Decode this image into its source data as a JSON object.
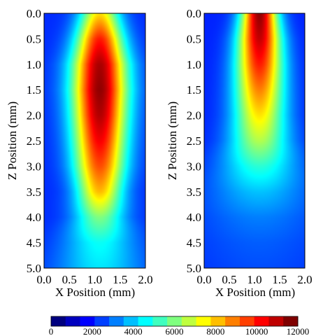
{
  "chart_data": [
    {
      "type": "heatmap",
      "title": "",
      "xlabel": "X Position (mm)",
      "ylabel": "Z Position (mm)",
      "xlim": [
        0.0,
        2.0
      ],
      "ylim": [
        0.0,
        5.0
      ],
      "y_axis_inverted": true,
      "x_ticks": [
        "0.0",
        "0.5",
        "1.0",
        "1.5",
        "2.0"
      ],
      "y_ticks": [
        "0.0",
        "0.5",
        "1.0",
        "1.5",
        "2.0",
        "2.5",
        "3.0",
        "3.5",
        "4.0",
        "4.5",
        "5.0"
      ],
      "grid": false,
      "colormap": "jet",
      "intensity_model": {
        "center_x": 1.1,
        "z_samples": [
          0.0,
          0.5,
          1.0,
          1.5,
          2.0,
          2.5,
          3.0,
          3.5,
          4.0,
          4.5,
          5.0
        ],
        "peak_values": [
          7800,
          10200,
          11500,
          11800,
          11400,
          10600,
          9600,
          8300,
          6000,
          4600,
          4200
        ],
        "half_widths_mm": [
          0.28,
          0.33,
          0.38,
          0.39,
          0.38,
          0.37,
          0.36,
          0.33,
          0.36,
          0.5,
          0.6
        ],
        "background_value": 2000
      }
    },
    {
      "type": "heatmap",
      "title": "",
      "xlabel": "X Position (mm)",
      "ylabel": "Z Position (mm)",
      "xlim": [
        0.0,
        2.0
      ],
      "ylim": [
        0.0,
        5.0
      ],
      "y_axis_inverted": true,
      "x_ticks": [
        "0.0",
        "0.5",
        "1.0",
        "1.5",
        "2.0"
      ],
      "y_ticks": [
        "0.0",
        "0.5",
        "1.0",
        "1.5",
        "2.0",
        "2.5",
        "3.0",
        "3.5",
        "4.0",
        "4.5",
        "5.0"
      ],
      "grid": false,
      "colormap": "jet",
      "intensity_model": {
        "center_x": 1.1,
        "z_samples": [
          0.0,
          0.5,
          1.0,
          1.5,
          2.0,
          2.5,
          3.0,
          3.5,
          4.0,
          4.5,
          5.0
        ],
        "peak_values": [
          11800,
          11200,
          10200,
          9000,
          7800,
          6600,
          5000,
          3800,
          3000,
          2600,
          2400
        ],
        "half_widths_mm": [
          0.25,
          0.3,
          0.33,
          0.35,
          0.37,
          0.42,
          0.55,
          0.7,
          0.85,
          0.95,
          1.0
        ],
        "background_value": 1900
      }
    }
  ],
  "colorbar": {
    "min": 0,
    "max": 12000,
    "tick_labels": [
      "0",
      "2000",
      "4000",
      "6000",
      "8000",
      "10000",
      "12000"
    ],
    "colors": [
      "#00007f",
      "#0000bf",
      "#0000ff",
      "#003fff",
      "#007fff",
      "#00bfff",
      "#00ffff",
      "#3fffbf",
      "#7fff7f",
      "#bfff3f",
      "#ffff00",
      "#ffbf00",
      "#ff7f00",
      "#ff3f00",
      "#ff0000",
      "#bf0000",
      "#7f0000"
    ]
  }
}
